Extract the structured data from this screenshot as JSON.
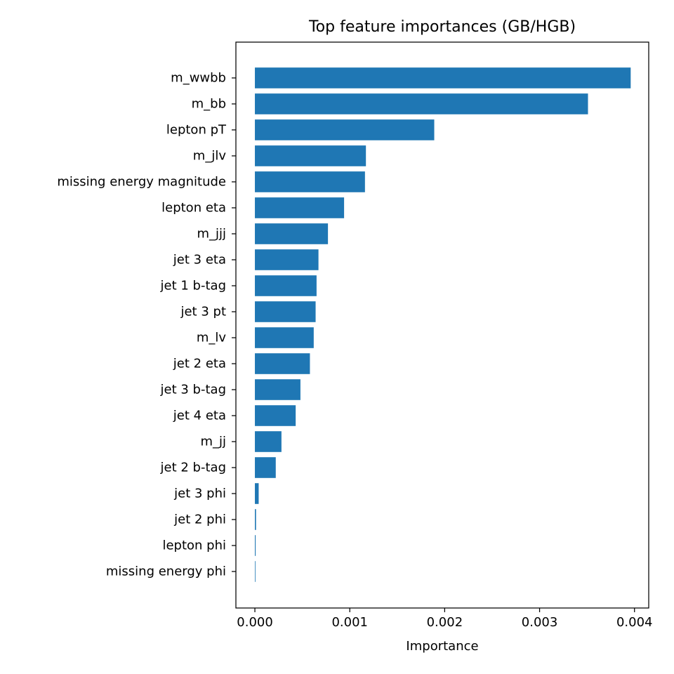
{
  "chart_data": {
    "type": "bar",
    "orientation": "horizontal",
    "title": "Top feature importances (GB/HGB)",
    "xlabel": "Importance",
    "ylabel": "",
    "categories": [
      "m_wwbb",
      "m_bb",
      "lepton pT",
      "m_jlv",
      "missing energy magnitude",
      "lepton eta",
      "m_jjj",
      "jet 3 eta",
      "jet 1 b-tag",
      "jet 3 pt",
      "m_lv",
      "jet 2 eta",
      "jet 3 b-tag",
      "jet 4 eta",
      "m_jj",
      "jet 2 b-tag",
      "jet 3 phi",
      "jet 2 phi",
      "lepton phi",
      "missing energy phi"
    ],
    "values": [
      0.00396,
      0.00351,
      0.00189,
      0.00117,
      0.00116,
      0.00094,
      0.00077,
      0.00067,
      0.00065,
      0.00064,
      0.00062,
      0.00058,
      0.00048,
      0.00043,
      0.00028,
      0.00022,
      4e-05,
      1.2e-05,
      8e-06,
      4e-06
    ],
    "xlim": [
      -0.0002,
      0.00415
    ],
    "xticks": [
      0,
      0.001,
      0.002,
      0.003,
      0.004
    ],
    "xtick_labels": [
      "0.000",
      "0.001",
      "0.002",
      "0.003",
      "0.004"
    ],
    "bar_color": "#1f77b4",
    "grid": false,
    "legend": "none"
  }
}
